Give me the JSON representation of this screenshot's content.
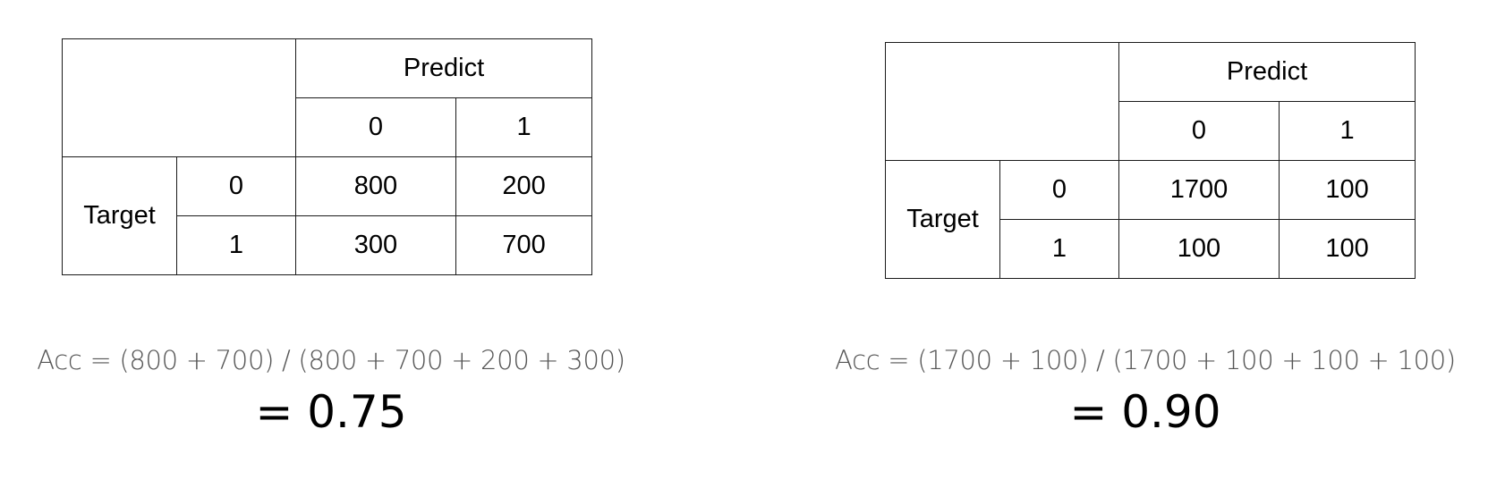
{
  "matrices": [
    {
      "header": "Predict",
      "row_header": "Target",
      "predict_classes": [
        "0",
        "1"
      ],
      "target_classes": [
        "0",
        "1"
      ],
      "cells": [
        [
          "800",
          "200"
        ],
        [
          "300",
          "700"
        ]
      ],
      "formula": "Acc = (800 + 700) / (800 + 700 + 200 + 300)",
      "result": "= 0.75"
    },
    {
      "header": "Predict",
      "row_header": "Target",
      "predict_classes": [
        "0",
        "1"
      ],
      "target_classes": [
        "0",
        "1"
      ],
      "cells": [
        [
          "1700",
          "100"
        ],
        [
          "100",
          "100"
        ]
      ],
      "formula": "Acc = (1700 + 100) / (1700 + 100 + 100 + 100)",
      "result": "= 0.90"
    }
  ]
}
